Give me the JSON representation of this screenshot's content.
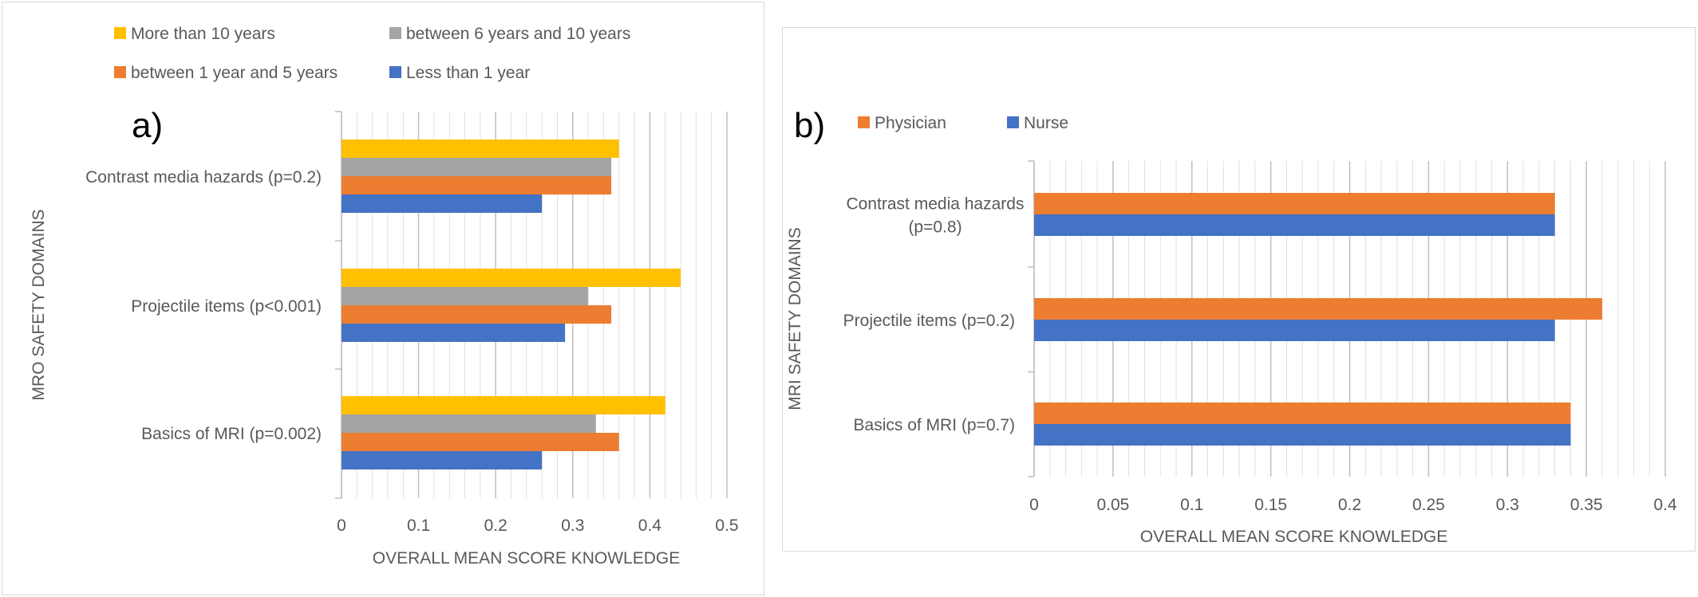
{
  "colors": {
    "yellow": "#ffc000",
    "gray": "#a5a5a5",
    "orange": "#ed7d31",
    "blue": "#4472c4",
    "grid": "#d9d9d9",
    "text": "#595959"
  },
  "chart_data": [
    {
      "type": "bar",
      "orientation": "horizontal",
      "panel_label": "a)",
      "xlabel": "OVERALL MEAN SCORE KNOWLEDGE",
      "ylabel": "MRO SAFETY DOMAINS",
      "xlim": [
        0,
        0.5
      ],
      "xticks": [
        "0",
        "0.1",
        "0.2",
        "0.3",
        "0.4",
        "0.5"
      ],
      "grid": "vertical major and minor gridlines",
      "legend_position": "top",
      "categories": [
        "Contrast media hazards (p=0.2)",
        "Projectile items (p<0.001)",
        "Basics of MRI (p=0.002)"
      ],
      "series": [
        {
          "name": "More than 10 years",
          "color": "#ffc000",
          "values": [
            0.36,
            0.44,
            0.42
          ]
        },
        {
          "name": "between 6 years and 10 years",
          "color": "#a5a5a5",
          "values": [
            0.35,
            0.32,
            0.33
          ]
        },
        {
          "name": "between 1 year and  5 years",
          "color": "#ed7d31",
          "values": [
            0.35,
            0.35,
            0.36
          ]
        },
        {
          "name": "Less than 1 year",
          "color": "#4472c4",
          "values": [
            0.26,
            0.29,
            0.26
          ]
        }
      ]
    },
    {
      "type": "bar",
      "orientation": "horizontal",
      "panel_label": "b)",
      "xlabel": "OVERALL MEAN SCORE KNOWLEDGE",
      "ylabel": "MRI SAFETY DOMAINS",
      "xlim": [
        0,
        0.4
      ],
      "xticks": [
        "0",
        "0.05",
        "0.1",
        "0.15",
        "0.2",
        "0.25",
        "0.3",
        "0.35",
        "0.4"
      ],
      "grid": "vertical major and minor gridlines",
      "legend_position": "top-left",
      "categories": [
        "Contrast media hazards|(p=0.8)",
        "Projectile items (p=0.2)",
        "Basics of MRI (p=0.7)"
      ],
      "series": [
        {
          "name": "Physician",
          "color": "#ed7d31",
          "values": [
            0.33,
            0.36,
            0.34
          ]
        },
        {
          "name": "Nurse",
          "color": "#4472c4",
          "values": [
            0.33,
            0.33,
            0.34
          ]
        }
      ]
    }
  ]
}
